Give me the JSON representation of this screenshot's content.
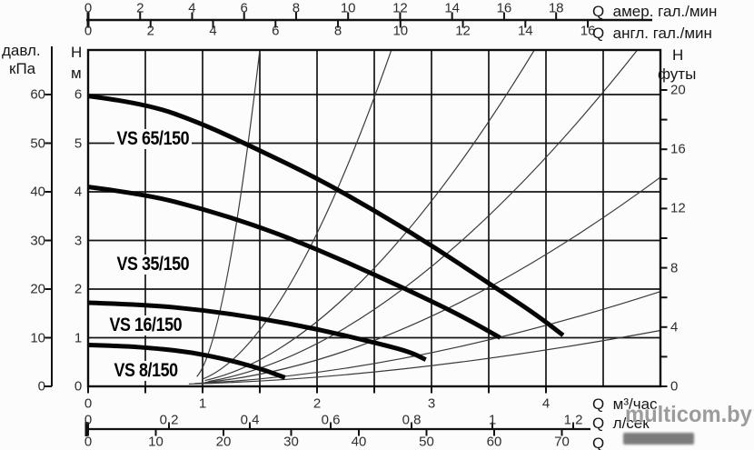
{
  "corner_labels": {
    "pressure_line1": "давл.",
    "pressure_line2": "кПа",
    "head_line1": "H",
    "head_line2": "м",
    "feet_line1": "H",
    "feet_line2": "футы"
  },
  "top_axes": {
    "us": {
      "unit": "Q  амер. гал./мин",
      "ticks": [
        0,
        2,
        4,
        6,
        8,
        10,
        12,
        14,
        16,
        18
      ]
    },
    "uk": {
      "unit": "Q  англ. гал./мин",
      "ticks": [
        0,
        2,
        4,
        6,
        8,
        10,
        12,
        14,
        16
      ]
    }
  },
  "left_axes": {
    "kpa_ticks": [
      60,
      50,
      40,
      30,
      20,
      10,
      0
    ],
    "h_m_ticks": [
      6,
      5,
      4,
      3,
      2,
      1,
      0
    ]
  },
  "right_axis": {
    "feet_labeled_ticks": [
      20,
      16,
      12,
      8,
      4,
      0
    ],
    "feet_minor_step": 2,
    "feet_max": 20
  },
  "bottom_axes": {
    "m3h": {
      "unit": "Q  м³/час",
      "ticks": [
        0,
        1,
        2,
        3,
        4
      ]
    },
    "ls": {
      "unit": "Q  л/сек",
      "ticks": [
        "0",
        "0,2",
        "0,4",
        "0,6",
        "0,8",
        "1",
        "1,2"
      ]
    },
    "lmin": {
      "unit": "Q",
      "ticks": [
        0,
        10,
        20,
        30,
        40,
        50,
        60,
        70
      ]
    }
  },
  "watermark": {
    "text": "multicom.by"
  },
  "chart_data": {
    "type": "line",
    "title": "",
    "xlabel": "Q, м³/час",
    "ylabel": "H, м",
    "xlim": [
      0,
      5
    ],
    "ylim": [
      0,
      6.9
    ],
    "grid": {
      "x_step_m3h": 0.5,
      "y_step_m": 1,
      "on": true
    },
    "secondary_x_scales": [
      "амер. гал./мин 0–18",
      "англ. гал./мин 0–16",
      "л/сек 0–1,2",
      "л/мин 0–70"
    ],
    "secondary_y_scales": [
      "давл. кПа 0–60",
      "футы 0–20"
    ],
    "series": [
      {
        "name": "VS 65/150",
        "points": [
          [
            0,
            5.97
          ],
          [
            0.5,
            5.82
          ],
          [
            1,
            5.4
          ],
          [
            1.5,
            4.85
          ],
          [
            2,
            4.28
          ],
          [
            2.5,
            3.62
          ],
          [
            3,
            2.9
          ],
          [
            3.5,
            2.12
          ],
          [
            3.9,
            1.5
          ],
          [
            4.15,
            1.05
          ]
        ]
      },
      {
        "name": "VS 35/150",
        "points": [
          [
            0,
            4.1
          ],
          [
            0.5,
            3.95
          ],
          [
            1,
            3.65
          ],
          [
            1.5,
            3.28
          ],
          [
            2,
            2.82
          ],
          [
            2.5,
            2.3
          ],
          [
            3,
            1.75
          ],
          [
            3.3,
            1.4
          ],
          [
            3.6,
            1.0
          ]
        ]
      },
      {
        "name": "VS 16/150",
        "points": [
          [
            0,
            1.72
          ],
          [
            0.5,
            1.68
          ],
          [
            1,
            1.57
          ],
          [
            1.5,
            1.4
          ],
          [
            2,
            1.18
          ],
          [
            2.5,
            0.9
          ],
          [
            2.8,
            0.72
          ],
          [
            2.95,
            0.55
          ]
        ]
      },
      {
        "name": "VS 8/150",
        "points": [
          [
            0,
            0.85
          ],
          [
            0.3,
            0.83
          ],
          [
            0.6,
            0.78
          ],
          [
            0.9,
            0.7
          ],
          [
            1.2,
            0.56
          ],
          [
            1.5,
            0.37
          ],
          [
            1.72,
            0.18
          ]
        ]
      }
    ],
    "system_curves": [
      {
        "start": [
          0.95,
          0.2
        ],
        "end": [
          1.5,
          6.92
        ]
      },
      {
        "start": [
          1.0,
          0.15
        ],
        "end": [
          2.65,
          6.92
        ]
      },
      {
        "start": [
          1.02,
          0.12
        ],
        "end": [
          3.9,
          6.92
        ]
      },
      {
        "start": [
          1.05,
          0.1
        ],
        "end": [
          4.8,
          6.92
        ]
      },
      {
        "start": [
          1.02,
          0.08
        ],
        "end": [
          5.0,
          4.3
        ]
      },
      {
        "start": [
          0.93,
          0.06
        ],
        "end": [
          5.0,
          1.95
        ]
      },
      {
        "start": [
          0.88,
          0.05
        ],
        "end": [
          5.0,
          1.15
        ]
      }
    ]
  }
}
